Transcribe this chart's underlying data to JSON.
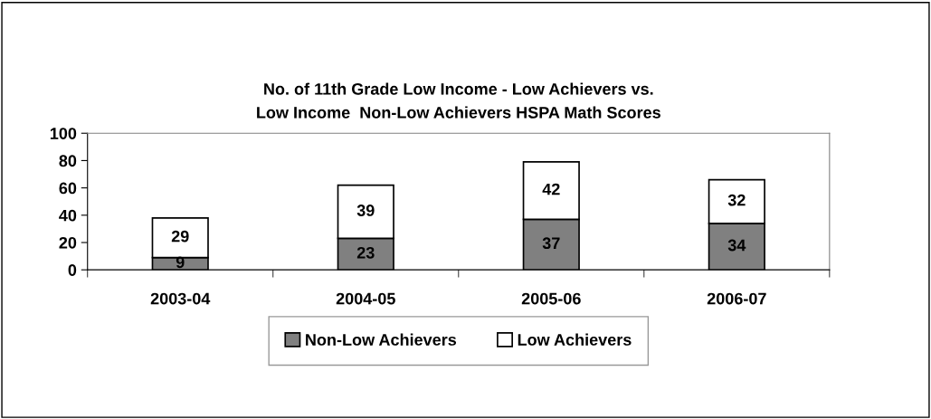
{
  "chart_data": {
    "type": "bar",
    "stacked": true,
    "title": "No. of 11th Grade Low Income - Low Achievers vs.\nLow Income  Non-Low Achievers HSPA Math Scores",
    "categories": [
      "2003-04",
      "2004-05",
      "2005-06",
      "2006-07"
    ],
    "series": [
      {
        "name": "Non-Low Achievers",
        "color": "#808080",
        "values": [
          9,
          23,
          37,
          34
        ]
      },
      {
        "name": "Low Achievers",
        "color": "#ffffff",
        "values": [
          29,
          39,
          42,
          32
        ]
      }
    ],
    "ylim": [
      0,
      100
    ],
    "yticks": [
      0,
      20,
      40,
      60,
      80,
      100
    ],
    "grid": false,
    "legend": "bottom",
    "data_labels": true
  }
}
